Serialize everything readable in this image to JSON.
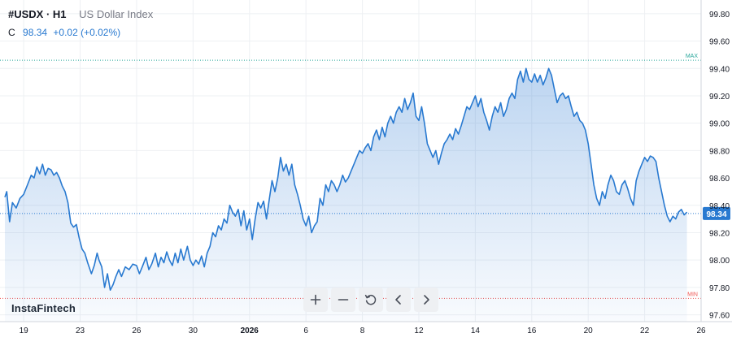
{
  "header": {
    "symbol": "#USDX · H1",
    "description": "US Dollar Index",
    "close_label": "C",
    "close_value": "98.34",
    "change": "+0.02 (+0.02%)"
  },
  "logo": "InstaFintech",
  "toolbar": [
    {
      "name": "zoom-in-button",
      "icon": "plus-icon"
    },
    {
      "name": "zoom-out-button",
      "icon": "minus-icon"
    },
    {
      "name": "reset-button",
      "icon": "reset-icon"
    },
    {
      "name": "scroll-left-button",
      "icon": "chevron-left-icon"
    },
    {
      "name": "scroll-right-button",
      "icon": "chevron-right-icon"
    }
  ],
  "chart_data": {
    "type": "area",
    "ylim": [
      97.55,
      99.9
    ],
    "xlim": [
      0,
      37
    ],
    "y_ticks": [
      "97.60",
      "97.80",
      "98.00",
      "98.20",
      "98.40",
      "98.60",
      "98.80",
      "99.00",
      "99.20",
      "99.40",
      "99.60",
      "99.80"
    ],
    "x_ticks": [
      {
        "x": 1,
        "label": "19",
        "bold": false
      },
      {
        "x": 4,
        "label": "23",
        "bold": false
      },
      {
        "x": 7,
        "label": "26",
        "bold": false
      },
      {
        "x": 10,
        "label": "30",
        "bold": false
      },
      {
        "x": 13,
        "label": "2026",
        "bold": true
      },
      {
        "x": 16,
        "label": "6",
        "bold": false
      },
      {
        "x": 19,
        "label": "8",
        "bold": false
      },
      {
        "x": 22,
        "label": "12",
        "bold": false
      },
      {
        "x": 25,
        "label": "14",
        "bold": false
      },
      {
        "x": 28,
        "label": "16",
        "bold": false
      },
      {
        "x": 31,
        "label": "20",
        "bold": false
      },
      {
        "x": 34,
        "label": "22",
        "bold": false
      },
      {
        "x": 37,
        "label": "26",
        "bold": false
      }
    ],
    "max": {
      "value": 99.46,
      "label": "MAX"
    },
    "min": {
      "value": 97.72,
      "label": "MIN"
    },
    "last": {
      "value": 98.34,
      "label": "98.34"
    },
    "series": [
      {
        "points": [
          [
            0.0,
            98.46
          ],
          [
            0.1,
            98.5
          ],
          [
            0.25,
            98.28
          ],
          [
            0.4,
            98.42
          ],
          [
            0.6,
            98.38
          ],
          [
            0.8,
            98.45
          ],
          [
            1.0,
            98.48
          ],
          [
            1.2,
            98.55
          ],
          [
            1.4,
            98.62
          ],
          [
            1.55,
            98.6
          ],
          [
            1.7,
            98.68
          ],
          [
            1.85,
            98.63
          ],
          [
            2.0,
            98.7
          ],
          [
            2.15,
            98.62
          ],
          [
            2.3,
            98.67
          ],
          [
            2.45,
            98.66
          ],
          [
            2.6,
            98.62
          ],
          [
            2.75,
            98.64
          ],
          [
            2.9,
            98.6
          ],
          [
            3.05,
            98.54
          ],
          [
            3.2,
            98.5
          ],
          [
            3.35,
            98.42
          ],
          [
            3.5,
            98.27
          ],
          [
            3.65,
            98.24
          ],
          [
            3.8,
            98.26
          ],
          [
            3.95,
            98.16
          ],
          [
            4.1,
            98.08
          ],
          [
            4.25,
            98.05
          ],
          [
            4.4,
            97.98
          ],
          [
            4.6,
            97.9
          ],
          [
            4.75,
            97.96
          ],
          [
            4.9,
            98.05
          ],
          [
            5.0,
            98.0
          ],
          [
            5.15,
            97.95
          ],
          [
            5.3,
            97.8
          ],
          [
            5.45,
            97.9
          ],
          [
            5.6,
            97.78
          ],
          [
            5.75,
            97.82
          ],
          [
            5.9,
            97.88
          ],
          [
            6.05,
            97.93
          ],
          [
            6.2,
            97.88
          ],
          [
            6.4,
            97.95
          ],
          [
            6.6,
            97.93
          ],
          [
            6.8,
            97.97
          ],
          [
            7.0,
            97.96
          ],
          [
            7.15,
            97.9
          ],
          [
            7.3,
            97.95
          ],
          [
            7.5,
            98.02
          ],
          [
            7.65,
            97.93
          ],
          [
            7.8,
            97.97
          ],
          [
            8.0,
            98.05
          ],
          [
            8.15,
            97.95
          ],
          [
            8.3,
            98.02
          ],
          [
            8.45,
            97.98
          ],
          [
            8.6,
            98.06
          ],
          [
            8.75,
            98.0
          ],
          [
            8.9,
            97.96
          ],
          [
            9.05,
            98.05
          ],
          [
            9.2,
            97.98
          ],
          [
            9.35,
            98.08
          ],
          [
            9.5,
            98.0
          ],
          [
            9.7,
            98.1
          ],
          [
            9.85,
            98.0
          ],
          [
            10.0,
            97.96
          ],
          [
            10.15,
            98.0
          ],
          [
            10.3,
            97.97
          ],
          [
            10.45,
            98.03
          ],
          [
            10.6,
            97.95
          ],
          [
            10.75,
            98.05
          ],
          [
            10.9,
            98.1
          ],
          [
            11.05,
            98.2
          ],
          [
            11.2,
            98.17
          ],
          [
            11.35,
            98.25
          ],
          [
            11.5,
            98.22
          ],
          [
            11.65,
            98.3
          ],
          [
            11.8,
            98.27
          ],
          [
            11.95,
            98.4
          ],
          [
            12.1,
            98.35
          ],
          [
            12.25,
            98.32
          ],
          [
            12.4,
            98.37
          ],
          [
            12.55,
            98.25
          ],
          [
            12.7,
            98.36
          ],
          [
            12.85,
            98.22
          ],
          [
            13.0,
            98.3
          ],
          [
            13.15,
            98.15
          ],
          [
            13.3,
            98.3
          ],
          [
            13.45,
            98.42
          ],
          [
            13.6,
            98.38
          ],
          [
            13.75,
            98.43
          ],
          [
            13.9,
            98.3
          ],
          [
            14.05,
            98.44
          ],
          [
            14.2,
            98.58
          ],
          [
            14.35,
            98.5
          ],
          [
            14.5,
            98.6
          ],
          [
            14.65,
            98.75
          ],
          [
            14.8,
            98.65
          ],
          [
            14.95,
            98.7
          ],
          [
            15.1,
            98.62
          ],
          [
            15.25,
            98.7
          ],
          [
            15.4,
            98.55
          ],
          [
            15.55,
            98.48
          ],
          [
            15.7,
            98.4
          ],
          [
            15.85,
            98.3
          ],
          [
            16.0,
            98.25
          ],
          [
            16.15,
            98.32
          ],
          [
            16.3,
            98.2
          ],
          [
            16.45,
            98.25
          ],
          [
            16.6,
            98.28
          ],
          [
            16.75,
            98.45
          ],
          [
            16.9,
            98.4
          ],
          [
            17.05,
            98.55
          ],
          [
            17.2,
            98.5
          ],
          [
            17.35,
            98.58
          ],
          [
            17.5,
            98.55
          ],
          [
            17.65,
            98.5
          ],
          [
            17.8,
            98.55
          ],
          [
            17.95,
            98.62
          ],
          [
            18.1,
            98.57
          ],
          [
            18.25,
            98.6
          ],
          [
            18.4,
            98.65
          ],
          [
            18.55,
            98.7
          ],
          [
            18.7,
            98.75
          ],
          [
            18.85,
            98.8
          ],
          [
            19.0,
            98.78
          ],
          [
            19.15,
            98.82
          ],
          [
            19.3,
            98.85
          ],
          [
            19.45,
            98.8
          ],
          [
            19.6,
            98.9
          ],
          [
            19.75,
            98.95
          ],
          [
            19.9,
            98.88
          ],
          [
            20.05,
            98.97
          ],
          [
            20.2,
            98.9
          ],
          [
            20.35,
            99.0
          ],
          [
            20.5,
            99.05
          ],
          [
            20.65,
            99.0
          ],
          [
            20.8,
            99.08
          ],
          [
            20.95,
            99.12
          ],
          [
            21.1,
            99.08
          ],
          [
            21.25,
            99.18
          ],
          [
            21.4,
            99.1
          ],
          [
            21.55,
            99.15
          ],
          [
            21.7,
            99.22
          ],
          [
            21.85,
            99.05
          ],
          [
            22.0,
            99.02
          ],
          [
            22.15,
            99.12
          ],
          [
            22.3,
            99.0
          ],
          [
            22.45,
            98.85
          ],
          [
            22.6,
            98.8
          ],
          [
            22.75,
            98.75
          ],
          [
            22.9,
            98.8
          ],
          [
            23.05,
            98.7
          ],
          [
            23.2,
            98.78
          ],
          [
            23.35,
            98.85
          ],
          [
            23.5,
            98.88
          ],
          [
            23.65,
            98.92
          ],
          [
            23.8,
            98.88
          ],
          [
            23.95,
            98.96
          ],
          [
            24.1,
            98.92
          ],
          [
            24.25,
            98.98
          ],
          [
            24.4,
            99.05
          ],
          [
            24.55,
            99.12
          ],
          [
            24.7,
            99.1
          ],
          [
            24.85,
            99.15
          ],
          [
            25.0,
            99.2
          ],
          [
            25.15,
            99.12
          ],
          [
            25.3,
            99.18
          ],
          [
            25.45,
            99.08
          ],
          [
            25.6,
            99.02
          ],
          [
            25.75,
            98.95
          ],
          [
            25.9,
            99.05
          ],
          [
            26.05,
            99.12
          ],
          [
            26.2,
            99.08
          ],
          [
            26.35,
            99.15
          ],
          [
            26.5,
            99.05
          ],
          [
            26.65,
            99.1
          ],
          [
            26.8,
            99.18
          ],
          [
            26.95,
            99.22
          ],
          [
            27.1,
            99.18
          ],
          [
            27.25,
            99.32
          ],
          [
            27.4,
            99.38
          ],
          [
            27.55,
            99.3
          ],
          [
            27.7,
            99.4
          ],
          [
            27.85,
            99.32
          ],
          [
            28.0,
            99.3
          ],
          [
            28.15,
            99.36
          ],
          [
            28.3,
            99.3
          ],
          [
            28.45,
            99.35
          ],
          [
            28.6,
            99.28
          ],
          [
            28.75,
            99.33
          ],
          [
            28.9,
            99.4
          ],
          [
            29.05,
            99.35
          ],
          [
            29.2,
            99.25
          ],
          [
            29.35,
            99.15
          ],
          [
            29.5,
            99.2
          ],
          [
            29.65,
            99.22
          ],
          [
            29.8,
            99.18
          ],
          [
            29.95,
            99.2
          ],
          [
            30.1,
            99.12
          ],
          [
            30.25,
            99.05
          ],
          [
            30.4,
            99.08
          ],
          [
            30.55,
            99.02
          ],
          [
            30.7,
            99.0
          ],
          [
            30.85,
            98.95
          ],
          [
            31.0,
            98.85
          ],
          [
            31.15,
            98.7
          ],
          [
            31.3,
            98.55
          ],
          [
            31.45,
            98.45
          ],
          [
            31.6,
            98.4
          ],
          [
            31.75,
            98.5
          ],
          [
            31.9,
            98.45
          ],
          [
            32.05,
            98.55
          ],
          [
            32.2,
            98.62
          ],
          [
            32.35,
            98.58
          ],
          [
            32.5,
            98.5
          ],
          [
            32.65,
            98.48
          ],
          [
            32.8,
            98.55
          ],
          [
            32.95,
            98.58
          ],
          [
            33.1,
            98.52
          ],
          [
            33.25,
            98.45
          ],
          [
            33.4,
            98.4
          ],
          [
            33.55,
            98.58
          ],
          [
            33.7,
            98.65
          ],
          [
            33.85,
            98.7
          ],
          [
            34.0,
            98.75
          ],
          [
            34.15,
            98.72
          ],
          [
            34.3,
            98.76
          ],
          [
            34.45,
            98.75
          ],
          [
            34.6,
            98.72
          ],
          [
            34.75,
            98.6
          ],
          [
            34.9,
            98.5
          ],
          [
            35.05,
            98.4
          ],
          [
            35.2,
            98.32
          ],
          [
            35.35,
            98.28
          ],
          [
            35.5,
            98.32
          ],
          [
            35.65,
            98.3
          ],
          [
            35.8,
            98.35
          ],
          [
            35.95,
            98.37
          ],
          [
            36.1,
            98.33
          ],
          [
            36.25,
            98.35
          ]
        ]
      }
    ]
  }
}
